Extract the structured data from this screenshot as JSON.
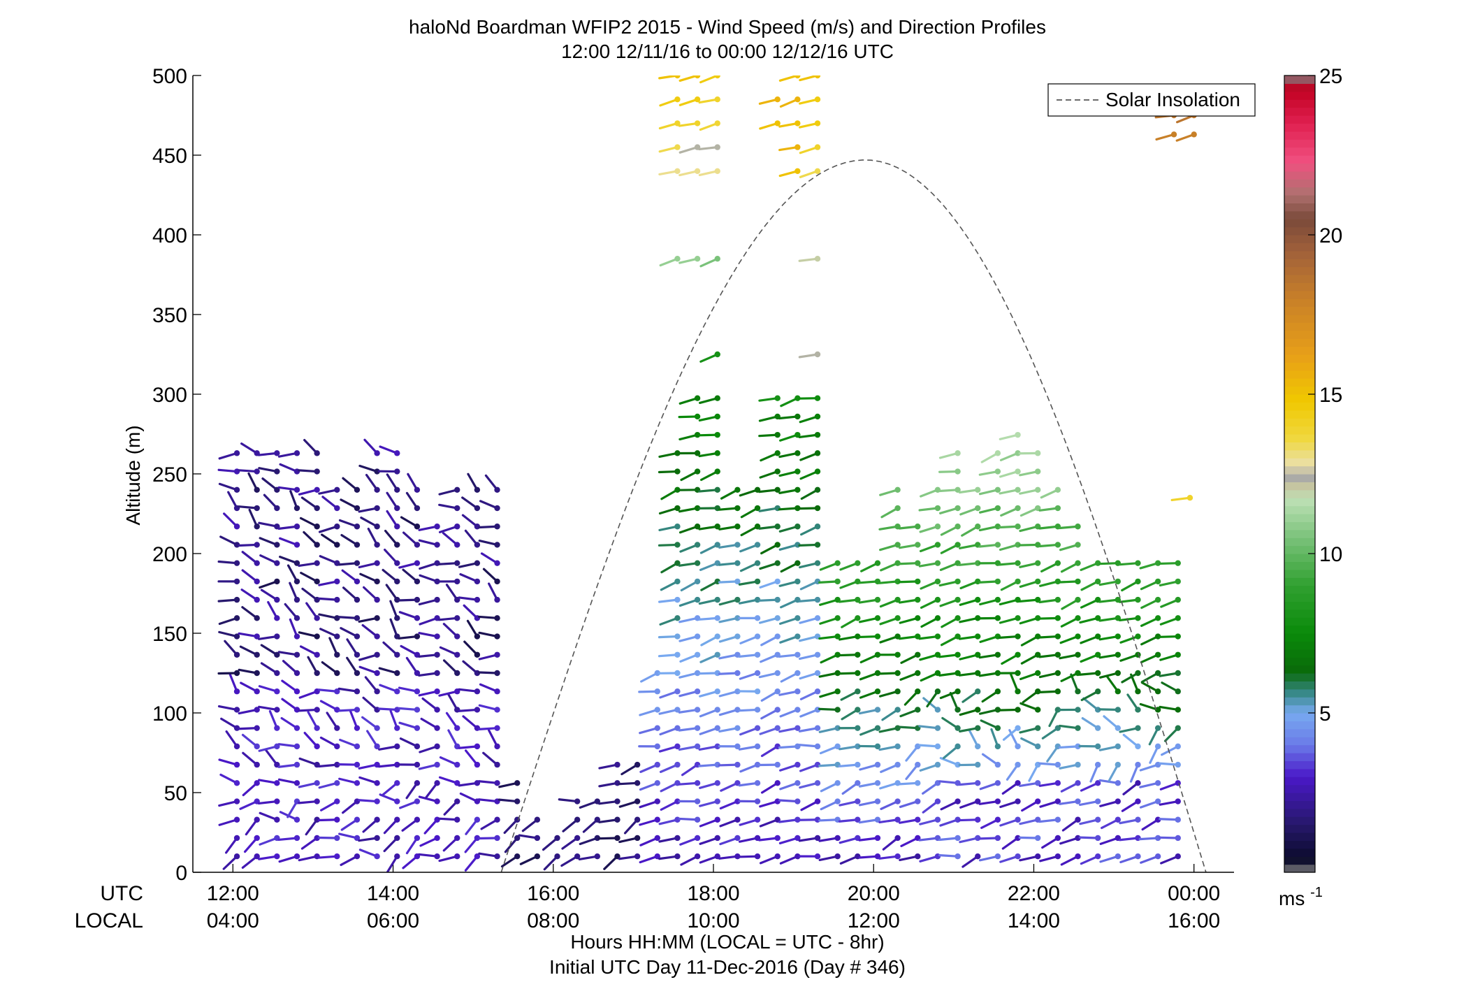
{
  "chart_data": {
    "type": "wind-barb-profile",
    "title": "haloNd Boardman WFIP2 2015 - Wind Speed (m/s) and Direction Profiles",
    "subtitle": "12:00 12/11/16 to 00:00 12/12/16  UTC",
    "ylabel": "Altitude (m)",
    "xlabel": "Hours HH:MM  (LOCAL = UTC - 8hr)",
    "xlabel2": "Initial UTC Day 11-Dec-2016 (Day # 346)",
    "utc_row_label": "UTC",
    "local_row_label": "LOCAL",
    "ylim": [
      0,
      500
    ],
    "yticks": [
      "0",
      "50",
      "100",
      "150",
      "200",
      "250",
      "300",
      "350",
      "400",
      "450",
      "500"
    ],
    "ytick_values": [
      0,
      50,
      100,
      150,
      200,
      250,
      300,
      350,
      400,
      450,
      500
    ],
    "xlim_hours": [
      11.5,
      24.5
    ],
    "xtick_hours": [
      12,
      14,
      16,
      18,
      20,
      22,
      24
    ],
    "xticks_utc": [
      "12:00",
      "14:00",
      "16:00",
      "18:00",
      "20:00",
      "22:00",
      "00:00"
    ],
    "xticks_local": [
      "04:00",
      "06:00",
      "08:00",
      "10:00",
      "12:00",
      "14:00",
      "16:00"
    ],
    "legend": {
      "label": "Solar Insolation",
      "position": "top-right"
    },
    "solar_insolation_curve": {
      "start_hour": 15.35,
      "peak_hour": 19.9,
      "end_hour": 24.15,
      "peak_altitude": 447
    },
    "colorbar": {
      "min": 0,
      "max": 25,
      "ticks": [
        "5",
        "10",
        "15",
        "20",
        "25"
      ],
      "tick_values": [
        5,
        10,
        15,
        20,
        25
      ],
      "unit_label": "ms",
      "unit_exponent": "-1",
      "stops": [
        [
          0.0,
          "#808080"
        ],
        [
          0.4,
          "#0a0a2a"
        ],
        [
          1.5,
          "#26186a"
        ],
        [
          3.0,
          "#4a18c8"
        ],
        [
          4.0,
          "#6a7ae8"
        ],
        [
          5.0,
          "#78aaf0"
        ],
        [
          5.6,
          "#3a8a8e"
        ],
        [
          6.3,
          "#0a6a0a"
        ],
        [
          7.5,
          "#0a8a0a"
        ],
        [
          9.0,
          "#30a030"
        ],
        [
          10.5,
          "#7ac27a"
        ],
        [
          11.7,
          "#bde0b5"
        ],
        [
          12.1,
          "#c8c8a0"
        ],
        [
          12.4,
          "#a8a8a8"
        ],
        [
          12.8,
          "#eae0a8"
        ],
        [
          13.6,
          "#f0d840"
        ],
        [
          14.8,
          "#f0c800"
        ],
        [
          16.2,
          "#e8a018"
        ],
        [
          18.0,
          "#c88028"
        ],
        [
          19.5,
          "#a0603a"
        ],
        [
          20.5,
          "#7a4a3a"
        ],
        [
          21.3,
          "#b07070"
        ],
        [
          22.3,
          "#f05080"
        ],
        [
          23.5,
          "#e02050"
        ],
        [
          24.6,
          "#c00020"
        ],
        [
          25.0,
          "#808080"
        ]
      ]
    },
    "barbs": {
      "units": "wind speed (m/s) and direction (deg, from) at [hour UTC, altitude m]",
      "profiles": [
        {
          "hour": 12.05,
          "min_alt": 10,
          "max_alt": 265,
          "regime": "night_nw"
        },
        {
          "hour": 12.3,
          "min_alt": 10,
          "max_alt": 265,
          "regime": "night_nw"
        },
        {
          "hour": 12.55,
          "min_alt": 10,
          "max_alt": 265,
          "regime": "night_nw"
        },
        {
          "hour": 12.8,
          "min_alt": 10,
          "max_alt": 265,
          "regime": "night_nw"
        },
        {
          "hour": 13.05,
          "min_alt": 10,
          "max_alt": 265,
          "regime": "night_nw"
        },
        {
          "hour": 13.3,
          "min_alt": 10,
          "max_alt": 245,
          "regime": "night_nw"
        },
        {
          "hour": 13.55,
          "min_alt": 10,
          "max_alt": 245,
          "regime": "night_nw"
        },
        {
          "hour": 13.8,
          "min_alt": 5,
          "max_alt": 265,
          "regime": "night_nw"
        },
        {
          "hour": 14.05,
          "min_alt": 10,
          "max_alt": 265,
          "regime": "night_nw"
        },
        {
          "hour": 14.3,
          "min_alt": 10,
          "max_alt": 245,
          "regime": "night_nw"
        },
        {
          "hour": 14.55,
          "min_alt": 10,
          "max_alt": 225,
          "regime": "night_nw"
        },
        {
          "hour": 14.8,
          "min_alt": 10,
          "max_alt": 245,
          "regime": "night_nw"
        },
        {
          "hour": 15.05,
          "min_alt": 10,
          "max_alt": 245,
          "regime": "night_nw"
        },
        {
          "hour": 15.3,
          "min_alt": 10,
          "max_alt": 245,
          "regime": "night_nw"
        },
        {
          "hour": 15.55,
          "min_alt": 10,
          "max_alt": 60,
          "regime": "dawn_shallow"
        },
        {
          "hour": 15.8,
          "min_alt": 10,
          "max_alt": 35,
          "regime": "dawn_shallow"
        },
        {
          "hour": 16.05,
          "min_alt": 10,
          "max_alt": 25,
          "regime": "dawn_shallow"
        },
        {
          "hour": 16.3,
          "min_alt": 10,
          "max_alt": 45,
          "regime": "dawn_shallow"
        },
        {
          "hour": 16.55,
          "min_alt": 10,
          "max_alt": 45,
          "regime": "dawn_shallow"
        },
        {
          "hour": 16.8,
          "min_alt": 10,
          "max_alt": 70,
          "regime": "dawn_shallow"
        },
        {
          "hour": 17.05,
          "min_alt": 10,
          "max_alt": 70,
          "regime": "dawn_shallow"
        },
        {
          "hour": 17.3,
          "min_alt": 10,
          "max_alt": 125,
          "regime": "day_sw"
        },
        {
          "hour": 17.55,
          "min_alt": 10,
          "max_alt": 265,
          "regime": "day_sw"
        },
        {
          "hour": 17.8,
          "min_alt": 10,
          "max_alt": 305,
          "regime": "day_sw"
        },
        {
          "hour": 18.05,
          "min_alt": 10,
          "max_alt": 305,
          "regime": "day_sw"
        },
        {
          "hour": 18.3,
          "min_alt": 10,
          "max_alt": 245,
          "regime": "day_sw"
        },
        {
          "hour": 18.55,
          "min_alt": 10,
          "max_alt": 245,
          "regime": "day_sw"
        },
        {
          "hour": 18.8,
          "min_alt": 10,
          "max_alt": 305,
          "regime": "day_sw"
        },
        {
          "hour": 19.05,
          "min_alt": 10,
          "max_alt": 305,
          "regime": "day_sw"
        },
        {
          "hour": 19.3,
          "min_alt": 10,
          "max_alt": 305,
          "regime": "day_sw"
        },
        {
          "hour": 19.55,
          "min_alt": 10,
          "max_alt": 200,
          "regime": "day_sw"
        },
        {
          "hour": 19.8,
          "min_alt": 10,
          "max_alt": 200,
          "regime": "day_sw"
        },
        {
          "hour": 20.05,
          "min_alt": 10,
          "max_alt": 200,
          "regime": "day_sw"
        },
        {
          "hour": 20.3,
          "min_alt": 10,
          "max_alt": 245,
          "regime": "day_sw"
        },
        {
          "hour": 20.55,
          "min_alt": 10,
          "max_alt": 225,
          "regime": "day_sw"
        },
        {
          "hour": 20.8,
          "min_alt": 10,
          "max_alt": 245,
          "regime": "day_sw"
        },
        {
          "hour": 21.05,
          "min_alt": 10,
          "max_alt": 265,
          "regime": "day_sw"
        },
        {
          "hour": 21.3,
          "min_alt": 10,
          "max_alt": 245,
          "regime": "day_sw"
        },
        {
          "hour": 21.55,
          "min_alt": 10,
          "max_alt": 265,
          "regime": "day_sw"
        },
        {
          "hour": 21.8,
          "min_alt": 10,
          "max_alt": 285,
          "regime": "day_sw"
        },
        {
          "hour": 22.05,
          "min_alt": 10,
          "max_alt": 265,
          "regime": "day_sw"
        },
        {
          "hour": 22.3,
          "min_alt": 10,
          "max_alt": 245,
          "regime": "day_sw"
        },
        {
          "hour": 22.55,
          "min_alt": 10,
          "max_alt": 225,
          "regime": "day_sw"
        },
        {
          "hour": 22.8,
          "min_alt": 10,
          "max_alt": 205,
          "regime": "day_sw"
        },
        {
          "hour": 23.05,
          "min_alt": 10,
          "max_alt": 205,
          "regime": "day_sw"
        },
        {
          "hour": 23.3,
          "min_alt": 10,
          "max_alt": 205,
          "regime": "day_sw"
        },
        {
          "hour": 23.55,
          "min_alt": 10,
          "max_alt": 205,
          "regime": "day_sw"
        },
        {
          "hour": 23.8,
          "min_alt": 10,
          "max_alt": 205,
          "regime": "day_sw"
        }
      ],
      "upper_barbs": [
        {
          "hour": 17.55,
          "altitudes": [
            385,
            440,
            455,
            470,
            485,
            500
          ],
          "speeds": [
            11,
            13,
            13.5,
            14,
            14.5,
            15
          ]
        },
        {
          "hour": 17.8,
          "altitudes": [
            385,
            440,
            455,
            470,
            485,
            500
          ],
          "speeds": [
            11,
            13,
            12.3,
            14,
            14.5,
            15
          ]
        },
        {
          "hour": 18.05,
          "altitudes": [
            385,
            440,
            455,
            470,
            485,
            500
          ],
          "speeds": [
            10.5,
            13,
            12.3,
            13.8,
            14,
            14.5
          ]
        },
        {
          "hour": 18.8,
          "altitudes": [
            470,
            485
          ],
          "speeds": [
            15,
            15.5
          ]
        },
        {
          "hour": 19.05,
          "altitudes": [
            440,
            455,
            470,
            485,
            500
          ],
          "speeds": [
            15,
            15.5,
            15,
            15.5,
            15
          ]
        },
        {
          "hour": 19.3,
          "altitudes": [
            385,
            440,
            455,
            470,
            485,
            500
          ],
          "speeds": [
            12,
            13.5,
            14,
            14.5,
            14.5,
            15
          ]
        },
        {
          "hour": 18.05,
          "altitudes": [
            325
          ],
          "speeds": [
            8
          ]
        },
        {
          "hour": 19.3,
          "altitudes": [
            325
          ],
          "speeds": [
            12.3
          ]
        },
        {
          "hour": 23.75,
          "altitudes": [
            463
          ],
          "speeds": [
            18
          ]
        },
        {
          "hour": 24.0,
          "altitudes": [
            463
          ],
          "speeds": [
            18
          ]
        },
        {
          "hour": 23.75,
          "altitudes": [
            475
          ],
          "speeds": [
            18.5
          ]
        },
        {
          "hour": 24.0,
          "altitudes": [
            475
          ],
          "speeds": [
            18.5
          ]
        },
        {
          "hour": 23.95,
          "altitudes": [
            235
          ],
          "speeds": [
            14
          ]
        }
      ]
    }
  }
}
